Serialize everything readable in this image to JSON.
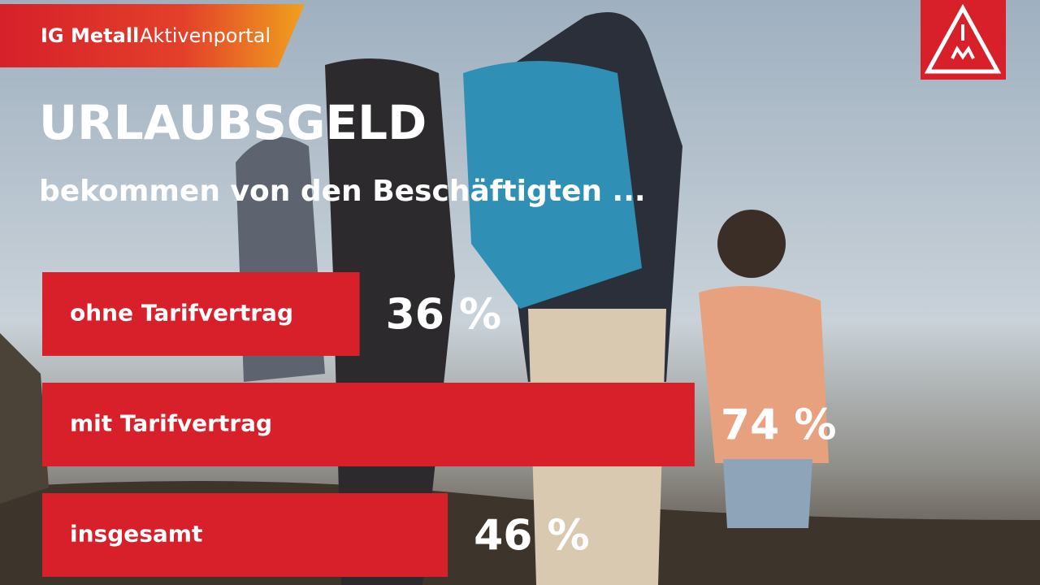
{
  "brand": {
    "name": "IG Metall",
    "portal": "Aktivenportal"
  },
  "chart_data": {
    "type": "hbar",
    "title": "URLAUBSGELD",
    "subtitle": "bekommen von den Beschäftigten ...",
    "categories": [
      "ohne Tarifvertrag",
      "mit Tarifvertrag",
      "insgesamt"
    ],
    "values": [
      36,
      74,
      46
    ],
    "value_labels": [
      "36 %",
      "74 %",
      "46 %"
    ],
    "color": "#d7202a"
  }
}
